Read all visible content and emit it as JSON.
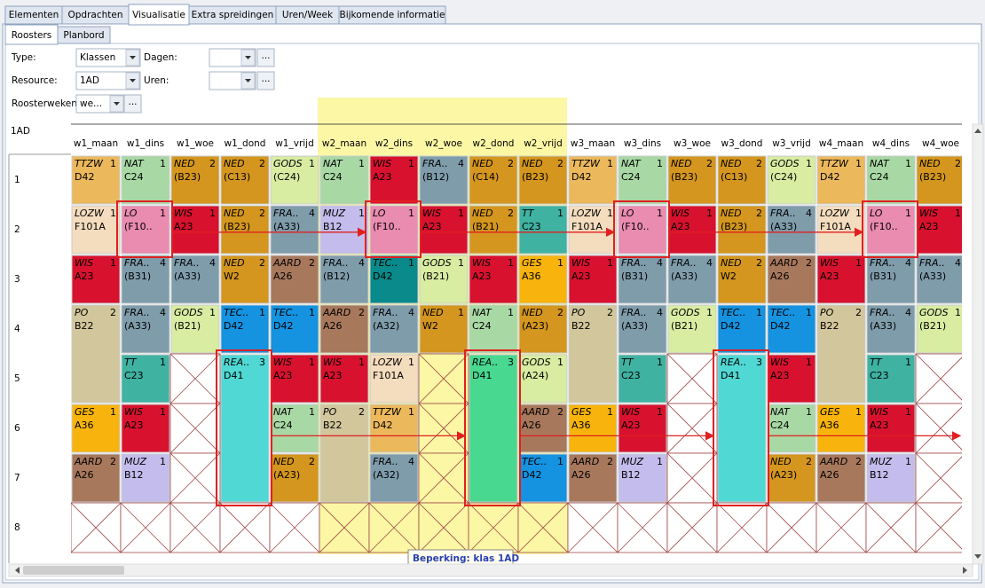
{
  "tabs": [
    "Elementen",
    "Opdrachten",
    "Visualisatie",
    "Extra spreidingen",
    "Uren/Week",
    "Bijkomende informatie"
  ],
  "active_tab": 2,
  "subtabs": [
    "Roosters",
    "Planbord"
  ],
  "active_subtab": 0,
  "form": {
    "type_label": "Type:",
    "type_value": "Klassen",
    "days_label": "Dagen:",
    "resource_label": "Resource:",
    "resource_value": "1AD",
    "hours_label": "Uren:",
    "weeks_label": "Roosterweken",
    "weeks_value": "we...",
    "button": "..."
  },
  "tooltip": "Beperking: klas 1AD",
  "subject_colors": {
    "TTZW": "#ecb85c",
    "NAT": "#a8d8a4",
    "NED": "#d4961e",
    "GODS": "#d8eca2",
    "WIS": "#d8112e",
    "FRA..": "#7f9cab",
    "LOZW": "#f4dcbe",
    "LO": "#ea8bb0",
    "MUZ": "#c4bcec",
    "TT": "#3fb2a2",
    "AARD": "#a8785c",
    "TEC..": "#1592e0",
    "GES": "#f8b40c",
    "PO": "#d2c69c",
    "REA..": "#50d8d4"
  },
  "grid": {
    "title": "1AD",
    "columns": [
      "w1_maan",
      "w1_dins",
      "w1_woe",
      "w1_dond",
      "w1_vrijd",
      "w2_maan",
      "w2_dins",
      "w2_woe",
      "w2_dond",
      "w2_vrijd",
      "w3_maan",
      "w3_dins",
      "w3_woe",
      "w3_dond",
      "w3_vrijd",
      "w4_maan",
      "w4_dins",
      "w4_woe"
    ],
    "highlight_columns": [
      5,
      9
    ],
    "rows": [
      {
        "label": "1",
        "cells": [
          {
            "subject": "TTZW",
            "count": 1,
            "room": "D42"
          },
          {
            "subject": "NAT",
            "count": 1,
            "room": "C24"
          },
          {
            "subject": "NED",
            "count": 2,
            "room": "(B23)"
          },
          {
            "subject": "NED",
            "count": 2,
            "room": "(C13)"
          },
          {
            "subject": "GODS",
            "count": 1,
            "room": "(C24)"
          },
          {
            "subject": "NAT",
            "count": 1,
            "room": "C24"
          },
          {
            "subject": "WIS",
            "count": 1,
            "room": "A23"
          },
          {
            "subject": "FRA..",
            "count": 4,
            "room": "(B12)"
          },
          {
            "subject": "NED",
            "count": 2,
            "room": "(C14)"
          },
          {
            "subject": "NED",
            "count": 2,
            "room": "(B23)"
          },
          {
            "subject": "TTZW",
            "count": 1,
            "room": "D42"
          },
          {
            "subject": "NAT",
            "count": 1,
            "room": "C24"
          },
          {
            "subject": "NED",
            "count": 2,
            "room": "(B23)"
          },
          {
            "subject": "NED",
            "count": 2,
            "room": "(C13)"
          },
          {
            "subject": "GODS",
            "count": 1,
            "room": "(C24)"
          },
          {
            "subject": "TTZW",
            "count": 1,
            "room": "D42"
          },
          {
            "subject": "NAT",
            "count": 1,
            "room": "C24"
          },
          {
            "subject": "NED",
            "count": 2,
            "room": "(B23)"
          }
        ]
      },
      {
        "label": "2",
        "cells": [
          {
            "subject": "LOZW",
            "count": 1,
            "room": "F101A"
          },
          {
            "subject": "LO",
            "count": 1,
            "room": "(F10..",
            "highlight": true
          },
          {
            "subject": "WIS",
            "count": 1,
            "room": "A23"
          },
          {
            "subject": "NED",
            "count": 2,
            "room": "(B23)"
          },
          {
            "subject": "FRA..",
            "count": 4,
            "room": "(A33)"
          },
          {
            "subject": "MUZ",
            "count": 1,
            "room": "B12"
          },
          {
            "subject": "LO",
            "count": 1,
            "room": "(F10..",
            "highlight": true
          },
          {
            "subject": "WIS",
            "count": 1,
            "room": "A23"
          },
          {
            "subject": "NED",
            "count": 2,
            "room": "(B21)"
          },
          {
            "subject": "TT",
            "count": 1,
            "room": "C23"
          },
          {
            "subject": "LOZW",
            "count": 1,
            "room": "F101A"
          },
          {
            "subject": "LO",
            "count": 1,
            "room": "(F10..",
            "highlight": true
          },
          {
            "subject": "WIS",
            "count": 1,
            "room": "A23"
          },
          {
            "subject": "NED",
            "count": 2,
            "room": "(B23)"
          },
          {
            "subject": "FRA..",
            "count": 4,
            "room": "(A33)"
          },
          {
            "subject": "LOZW",
            "count": 1,
            "room": "F101A"
          },
          {
            "subject": "LO",
            "count": 1,
            "room": "(F10..",
            "highlight": true
          },
          {
            "subject": "WIS",
            "count": 1,
            "room": "A23"
          }
        ]
      },
      {
        "label": "3",
        "cells": [
          {
            "subject": "WIS",
            "count": 1,
            "room": "A23"
          },
          {
            "subject": "FRA..",
            "count": 4,
            "room": "(B31)"
          },
          {
            "subject": "FRA..",
            "count": 4,
            "room": "(A33)"
          },
          {
            "subject": "NED",
            "count": 2,
            "room": "W2"
          },
          {
            "subject": "AARD",
            "count": 2,
            "room": "A26"
          },
          {
            "subject": "FRA..",
            "count": 4,
            "room": "(B12)"
          },
          {
            "subject": "TEC..",
            "count": 1,
            "room": "D42",
            "color": "#0a8a8a"
          },
          {
            "subject": "GODS",
            "count": 1,
            "room": "(B21)"
          },
          {
            "subject": "WIS",
            "count": 1,
            "room": "A23"
          },
          {
            "subject": "GES",
            "count": 1,
            "room": "A36"
          },
          {
            "subject": "WIS",
            "count": 1,
            "room": "A23"
          },
          {
            "subject": "FRA..",
            "count": 4,
            "room": "(B31)"
          },
          {
            "subject": "FRA..",
            "count": 4,
            "room": "(A33)"
          },
          {
            "subject": "NED",
            "count": 2,
            "room": "W2"
          },
          {
            "subject": "AARD",
            "count": 2,
            "room": "A26"
          },
          {
            "subject": "WIS",
            "count": 1,
            "room": "A23"
          },
          {
            "subject": "FRA..",
            "count": 4,
            "room": "(B31)"
          },
          {
            "subject": "FRA..",
            "count": 4,
            "room": "(A33)"
          }
        ]
      },
      {
        "label": "4",
        "cells": [
          {
            "subject": "PO",
            "count": 2,
            "room": "B22",
            "span": 2
          },
          {
            "subject": "FRA..",
            "count": 4,
            "room": "(A33)"
          },
          {
            "subject": "GODS",
            "count": 1,
            "room": "(B21)"
          },
          {
            "subject": "TEC..",
            "count": 1,
            "room": "D42"
          },
          {
            "subject": "TEC..",
            "count": 1,
            "room": "D42"
          },
          {
            "subject": "AARD",
            "count": 2,
            "room": "A26"
          },
          {
            "subject": "FRA..",
            "count": 4,
            "room": "(A32)"
          },
          {
            "subject": "NED",
            "count": 1,
            "room": "W2"
          },
          {
            "subject": "NAT",
            "count": 1,
            "room": "C24"
          },
          {
            "subject": "NED",
            "count": 2,
            "room": "(A23)"
          },
          {
            "subject": "PO",
            "count": 2,
            "room": "B22",
            "span": 2
          },
          {
            "subject": "FRA..",
            "count": 4,
            "room": "(A33)"
          },
          {
            "subject": "GODS",
            "count": 1,
            "room": "(B21)"
          },
          {
            "subject": "TEC..",
            "count": 1,
            "room": "D42"
          },
          {
            "subject": "TEC..",
            "count": 1,
            "room": "D42"
          },
          {
            "subject": "PO",
            "count": 2,
            "room": "B22",
            "span": 2
          },
          {
            "subject": "FRA..",
            "count": 4,
            "room": "(A33)"
          },
          {
            "subject": "GODS",
            "count": 1,
            "room": "(B21)"
          }
        ]
      },
      {
        "label": "5",
        "cells": [
          null,
          {
            "subject": "TT",
            "count": 1,
            "room": "C23"
          },
          {
            "blocked": true
          },
          {
            "subject": "REA..",
            "count": 3,
            "room": "D41",
            "span": 3,
            "highlight": true
          },
          {
            "subject": "WIS",
            "count": 1,
            "room": "A23"
          },
          {
            "subject": "WIS",
            "count": 1,
            "room": "A23"
          },
          {
            "subject": "LOZW",
            "count": 1,
            "room": "F101A"
          },
          {
            "blocked": true
          },
          {
            "subject": "REA..",
            "count": 3,
            "room": "D41",
            "span": 3,
            "highlight": true,
            "color": "#48d890"
          },
          {
            "subject": "GODS",
            "count": 1,
            "room": "(A24)"
          },
          null,
          {
            "subject": "TT",
            "count": 1,
            "room": "C23"
          },
          {
            "blocked": true
          },
          {
            "subject": "REA..",
            "count": 3,
            "room": "D41",
            "span": 3,
            "highlight": true
          },
          {
            "subject": "WIS",
            "count": 1,
            "room": "A23"
          },
          null,
          {
            "subject": "TT",
            "count": 1,
            "room": "C23"
          },
          {
            "blocked": true
          }
        ]
      },
      {
        "label": "6",
        "cells": [
          {
            "subject": "GES",
            "count": 1,
            "room": "A36"
          },
          {
            "subject": "WIS",
            "count": 1,
            "room": "A23"
          },
          {
            "blocked": true
          },
          null,
          {
            "subject": "NAT",
            "count": 1,
            "room": "C24"
          },
          {
            "subject": "PO",
            "count": 2,
            "room": "B22",
            "span": 2
          },
          {
            "subject": "TTZW",
            "count": 1,
            "room": "D42"
          },
          {
            "blocked": true
          },
          null,
          {
            "subject": "AARD",
            "count": 2,
            "room": "A26"
          },
          {
            "subject": "GES",
            "count": 1,
            "room": "A36"
          },
          {
            "subject": "WIS",
            "count": 1,
            "room": "A23"
          },
          {
            "blocked": true
          },
          null,
          {
            "subject": "NAT",
            "count": 1,
            "room": "C24"
          },
          {
            "subject": "GES",
            "count": 1,
            "room": "A36"
          },
          {
            "subject": "WIS",
            "count": 1,
            "room": "A23"
          },
          {
            "blocked": true
          }
        ]
      },
      {
        "label": "7",
        "cells": [
          {
            "subject": "AARD",
            "count": 2,
            "room": "A26"
          },
          {
            "subject": "MUZ",
            "count": 1,
            "room": "B12"
          },
          {
            "blocked": true
          },
          null,
          {
            "subject": "NED",
            "count": 2,
            "room": "(A23)"
          },
          null,
          {
            "subject": "FRA..",
            "count": 4,
            "room": "(A32)"
          },
          {
            "blocked": true
          },
          null,
          {
            "subject": "TEC..",
            "count": 1,
            "room": "D42"
          },
          {
            "subject": "AARD",
            "count": 2,
            "room": "A26"
          },
          {
            "subject": "MUZ",
            "count": 1,
            "room": "B12"
          },
          {
            "blocked": true
          },
          null,
          {
            "subject": "NED",
            "count": 2,
            "room": "(A23)"
          },
          {
            "subject": "AARD",
            "count": 2,
            "room": "A26"
          },
          {
            "subject": "MUZ",
            "count": 1,
            "room": "B12"
          },
          {
            "blocked": true
          }
        ]
      },
      {
        "label": "8",
        "cells": [
          {
            "blocked": true
          },
          {
            "blocked": true
          },
          {
            "blocked": true
          },
          {
            "blocked": true
          },
          {
            "blocked": true
          },
          {
            "blocked": true
          },
          {
            "blocked": true
          },
          {
            "blocked": true
          },
          {
            "blocked": true
          },
          {
            "blocked": true
          },
          {
            "blocked": true
          },
          {
            "blocked": true
          },
          {
            "blocked": true
          },
          {
            "blocked": true
          },
          {
            "blocked": true
          },
          {
            "blocked": true
          },
          {
            "blocked": true
          },
          {
            "blocked": true
          }
        ]
      }
    ]
  }
}
